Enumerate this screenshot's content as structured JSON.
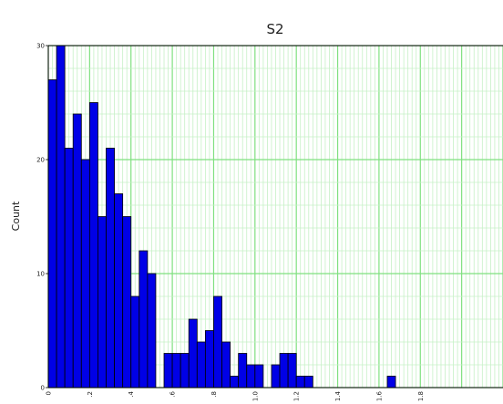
{
  "chart_data": {
    "type": "bar",
    "title": "S2",
    "xlabel": "",
    "ylabel": "Count",
    "xlim": [
      0,
      2.2
    ],
    "ylim": [
      0,
      30
    ],
    "y_ticks": [
      "0",
      "10",
      "20",
      "30"
    ],
    "x_ticks": [
      "0",
      ".2",
      ".4",
      ".6",
      ".8",
      "1.0",
      "1.2",
      "1.4",
      "1.6",
      "1.8"
    ],
    "bin_width": 0.04,
    "bin_start": 0,
    "values": [
      27,
      30,
      21,
      24,
      20,
      25,
      15,
      21,
      17,
      15,
      8,
      12,
      10,
      0,
      3,
      3,
      3,
      6,
      4,
      5,
      8,
      4,
      1,
      3,
      2,
      2,
      0,
      2,
      3,
      3,
      1,
      1,
      0,
      0,
      0,
      0,
      0,
      0,
      0,
      0,
      0,
      1
    ],
    "grid": true,
    "colors": {
      "bar_fill": "#0000e6",
      "bar_edge": "#000000",
      "grid_major": "#7fe07f",
      "grid_minor": "#c6f0c6"
    }
  }
}
